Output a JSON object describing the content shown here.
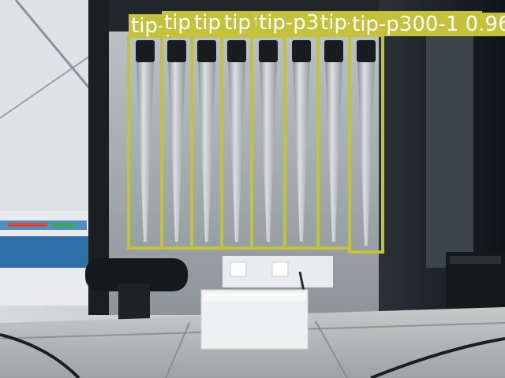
{
  "scene": {
    "description_free": true,
    "box_color": "#c4c23a",
    "label_text_color": "#ffffff"
  },
  "detections": [
    {
      "label": "tip-p300-1 0.96"
    },
    {
      "label": "tip-p300-1 0.96"
    },
    {
      "label": "tip-p300-1 0.96"
    },
    {
      "label": "tip-p300-1 0.96"
    },
    {
      "label": "tip-p300-1 0.96"
    },
    {
      "label": "tip-p300-1 0.96"
    },
    {
      "label": "tip-p300-1 0.96"
    },
    {
      "label": "tip-p300-1 0.96"
    }
  ]
}
